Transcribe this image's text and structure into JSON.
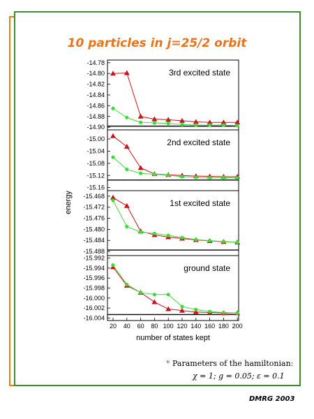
{
  "title": "10 particles in j=25/2 orbit",
  "credit": "DMRG 2003",
  "footnote": {
    "marker": "*",
    "text": "Parameters of the hamiltonian:",
    "params": "χ = 1;  g = 0.05;  ε = 0.1"
  },
  "chart_data": {
    "type": "line",
    "xlabel": "number of states kept",
    "ylabel": "energy",
    "x": [
      20,
      40,
      60,
      80,
      100,
      120,
      140,
      160,
      180,
      200
    ],
    "x_tick_labels": [
      "20",
      "40",
      "60",
      "80",
      "100",
      "120",
      "140",
      "160",
      "180",
      "200"
    ],
    "grid": false,
    "colors": {
      "red": "#c8141c",
      "green": "#3ddc3a",
      "reference": "#000000"
    },
    "panels": [
      {
        "label": "3rd excited state",
        "ylim": [
          -14.905,
          -14.775
        ],
        "yticks": [
          "-14.78",
          "-14.80",
          "-14.82",
          "-14.84",
          "-14.86",
          "-14.88",
          "-14.90"
        ],
        "reference": -14.898,
        "series": [
          {
            "marker": "triangle",
            "color": "red",
            "values": [
              -14.8,
              -14.799,
              -14.88,
              -14.885,
              -14.886,
              -14.888,
              -14.89,
              -14.891,
              -14.891,
              -14.891
            ]
          },
          {
            "marker": "circle",
            "color": "green",
            "values": [
              -14.865,
              -14.882,
              -14.891,
              -14.892,
              -14.893,
              -14.895,
              -14.896,
              -14.896,
              -14.896,
              -14.897
            ]
          }
        ]
      },
      {
        "label": "2nd excited state",
        "ylim": [
          -15.17,
          -14.97
        ],
        "yticks": [
          "-15.00",
          "-15.04",
          "-15.08",
          "-15.12",
          "-15.16"
        ],
        "reference": -15.135,
        "series": [
          {
            "marker": "triangle",
            "color": "red",
            "values": [
              -14.99,
              -15.025,
              -15.095,
              -15.115,
              -15.118,
              -15.12,
              -15.122,
              -15.123,
              -15.124,
              -15.124
            ]
          },
          {
            "marker": "circle",
            "color": "green",
            "values": [
              -15.06,
              -15.1,
              -15.113,
              -15.116,
              -15.119,
              -15.124,
              -15.126,
              -15.127,
              -15.127,
              -15.128
            ]
          }
        ]
      },
      {
        "label": "1st excited state",
        "ylim": [
          -15.4895,
          -15.466
        ],
        "yticks": [
          "-15.468",
          "-15.472",
          "-15.476",
          "-15.480",
          "-15.484",
          "-15.488"
        ],
        "reference": -15.4875,
        "series": [
          {
            "marker": "triangle",
            "color": "red",
            "values": [
              -15.4685,
              -15.4715,
              -15.4807,
              -15.482,
              -15.4828,
              -15.4833,
              -15.4838,
              -15.4842,
              -15.4845,
              -15.4847
            ]
          },
          {
            "marker": "circle",
            "color": "green",
            "values": [
              -15.4695,
              -15.479,
              -15.481,
              -15.4815,
              -15.4822,
              -15.483,
              -15.4837,
              -15.4841,
              -15.4844,
              -15.4847
            ]
          }
        ]
      },
      {
        "label": "ground state",
        "ylim": [
          -16.0045,
          -15.9915
        ],
        "yticks": [
          "-15.992",
          "-15.994",
          "-15.996",
          "-15.998",
          "-16.000",
          "-16.002",
          "-16.004"
        ],
        "reference": -16.0033,
        "series": [
          {
            "marker": "triangle",
            "color": "red",
            "values": [
              -15.9938,
              -15.9975,
              -15.9989,
              -16.0008,
              -16.0022,
              -16.0025,
              -16.0028,
              -16.0029,
              -16.003,
              -16.003
            ]
          },
          {
            "marker": "circle",
            "color": "green",
            "values": [
              -15.9934,
              -15.9973,
              -15.9989,
              -15.9993,
              -15.9993,
              -16.0017,
              -16.0023,
              -16.0027,
              -16.0029,
              -16.003
            ]
          }
        ]
      }
    ]
  }
}
